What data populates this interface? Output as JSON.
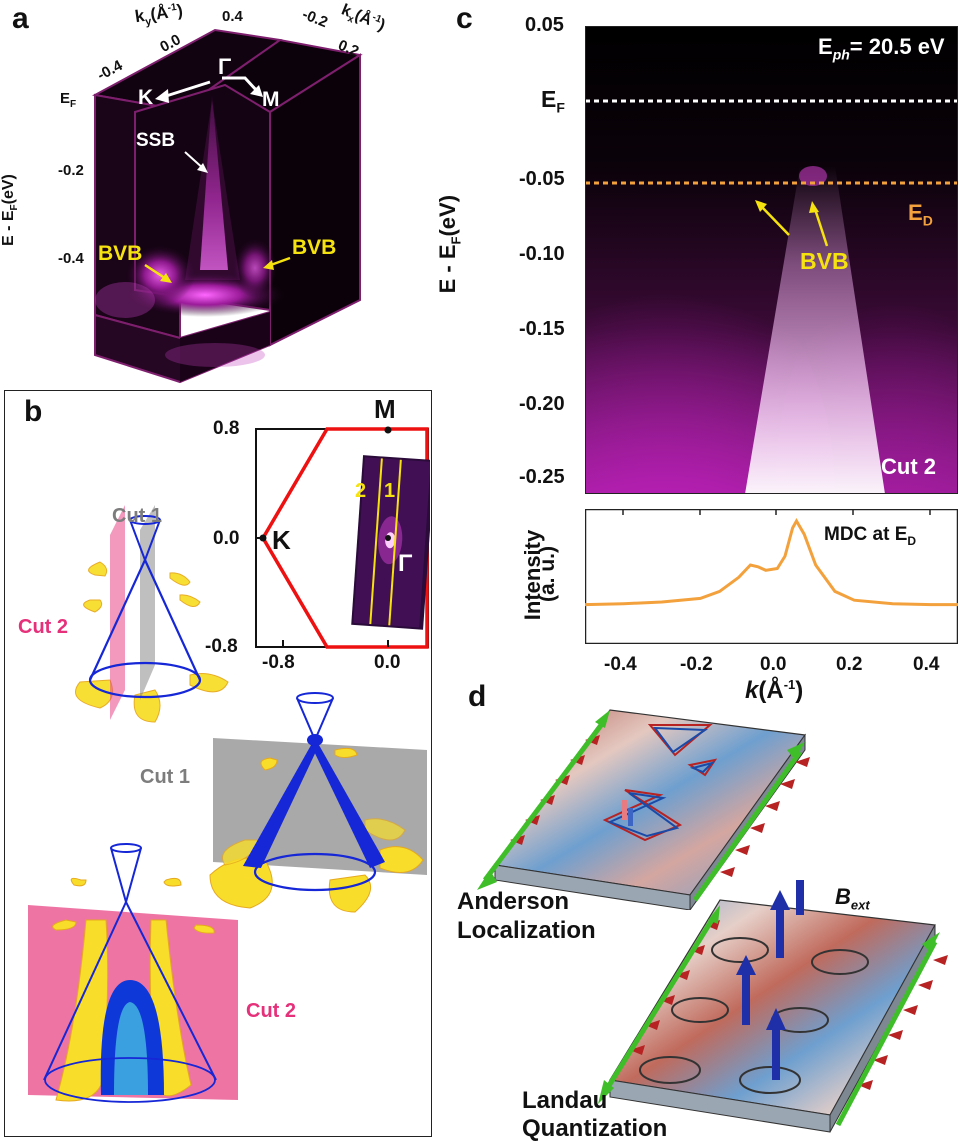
{
  "panel_a": {
    "label": "a",
    "ky_axis": "k",
    "ky_sub": "y",
    "ky_unit": "(Å",
    "ky_ticks": [
      "-0.4",
      "0.0",
      "0.4"
    ],
    "kx_axis": "k",
    "kx_sub": "x",
    "kx_unit": "(Å",
    "kx_ticks": [
      "-0.2",
      "0.2"
    ],
    "ef": "E",
    "ef_sub": "F",
    "e_axis": "E - E",
    "e_axis_sub": "F",
    "e_axis_unit": "(eV)",
    "e_ticks": [
      "-0.2",
      "-0.4"
    ],
    "gamma": "Γ",
    "k_point": "K",
    "m_point": "M",
    "ssb": "SSB",
    "bvb_left": "BVB",
    "bvb_right": "BVB"
  },
  "panel_b": {
    "label": "b",
    "bz_y_ticks": [
      "0.8",
      "0.0",
      "-0.8"
    ],
    "bz_x_ticks": [
      "-0.8",
      "0.0"
    ],
    "m_label": "M",
    "k_label": "K",
    "gamma": "Γ",
    "cut_num_2": "2",
    "cut_num_1": "1",
    "cut1_top": "Cut 1",
    "cut2_top": "Cut 2",
    "cut1_mid": "Cut 1",
    "cut2_bottom": "Cut 2"
  },
  "panel_c": {
    "label": "c",
    "photon": "E",
    "photon_sub": "ph",
    "photon_val": "= 20.5 eV",
    "ef": "E",
    "ef_sub": "F",
    "ed": "E",
    "ed_sub": "D",
    "bvb": "BVB",
    "cut": "Cut 2",
    "mdc_title": "MDC at E",
    "mdc_sub": "D",
    "ylabel": "E - E",
    "ylabel_sub": "F",
    "ylabel_unit": "(eV)",
    "mdc_ylabel_1": "Intensity",
    "mdc_ylabel_2": "(a. u.)",
    "xlabel": "k",
    "xlabel_unit": "(Å",
    "xlabel_exp": "-1",
    "xlabel_close": ")",
    "colors": {
      "fermi": "#ffffff",
      "dirac": "#f3a13c",
      "mdc": "#f3a13c",
      "arrow": "#f5e20f"
    }
  },
  "panel_d": {
    "label": "d",
    "anderson_1": "Anderson",
    "anderson_2": "Localization",
    "bext": "B",
    "bext_sub": "ext",
    "landau_1": "Landau",
    "landau_2": "Quantization"
  },
  "chart_data": [
    {
      "type": "heatmap",
      "title": "Cut 2",
      "ylabel": "E - E_F (eV)",
      "ylim": [
        -0.26,
        0.05
      ],
      "y_ticks": [
        "0.05",
        "-0.05",
        "-0.10",
        "-0.15",
        "-0.20",
        "-0.25"
      ],
      "x_ticks": [
        "-0.4",
        "-0.2",
        "0.0",
        "0.2",
        "0.4"
      ],
      "xlim": [
        -0.5,
        0.47
      ],
      "annotations": [
        {
          "label": "E_F",
          "y": 0.0
        },
        {
          "label": "E_D",
          "y": -0.055
        },
        {
          "label": "BVB"
        }
      ]
    },
    {
      "type": "line",
      "title": "MDC at E_D",
      "xlabel": "k (Å^-1)",
      "ylabel": "Intensity (a. u.)",
      "xlim": [
        -0.5,
        0.47
      ],
      "x": [
        -0.5,
        -0.4,
        -0.3,
        -0.2,
        -0.15,
        -0.1,
        -0.07,
        -0.05,
        -0.03,
        0.0,
        0.02,
        0.04,
        0.05,
        0.07,
        0.1,
        0.15,
        0.2,
        0.3,
        0.4,
        0.47
      ],
      "series": [
        {
          "values": [
            0.05,
            0.06,
            0.08,
            0.12,
            0.2,
            0.36,
            0.5,
            0.48,
            0.44,
            0.46,
            0.6,
            0.92,
            1.0,
            0.85,
            0.5,
            0.2,
            0.1,
            0.06,
            0.05,
            0.05
          ]
        }
      ]
    }
  ]
}
